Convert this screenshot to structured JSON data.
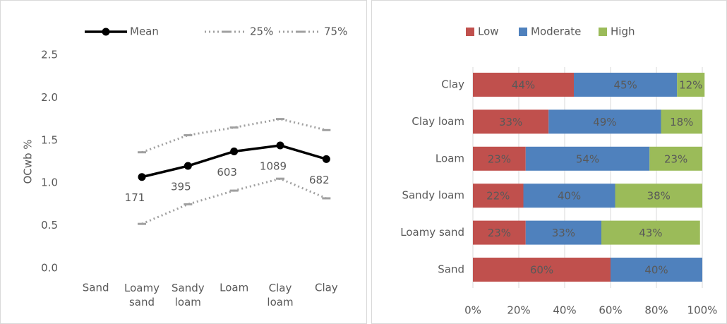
{
  "chart_data": [
    {
      "type": "line",
      "y_label": "OCwb %",
      "categories": [
        "Sand",
        "Loamy sand",
        "Sandy loam",
        "Loam",
        "Clay loam",
        "Clay"
      ],
      "series": [
        {
          "name": "Mean",
          "color": "#000000",
          "values": [
            null,
            1.07,
            1.2,
            1.37,
            1.44,
            1.28
          ]
        },
        {
          "name": "25%",
          "color": "#a0a0a0",
          "values": [
            null,
            0.52,
            0.75,
            0.91,
            1.05,
            0.82
          ]
        },
        {
          "name": "75%",
          "color": "#a0a0a0",
          "values": [
            null,
            1.36,
            1.56,
            1.65,
            1.75,
            1.62
          ]
        }
      ],
      "sample_counts": [
        null,
        171,
        395,
        603,
        1089,
        682
      ],
      "ylim": [
        0,
        2.5
      ],
      "yticks": [
        {
          "value": 0,
          "label": "0.0"
        },
        0.5,
        {
          "value": 1,
          "label": "1.0"
        },
        1.5,
        {
          "value": 2,
          "label": "2.0"
        },
        2.5
      ],
      "legend": "top",
      "grid": false
    },
    {
      "type": "stacked-bar-horizontal",
      "categories": [
        "Sand",
        "Loamy sand",
        "Sandy loam",
        "Loam",
        "Clay loam",
        "Clay"
      ],
      "series": [
        {
          "name": "Low",
          "color": "#c0504d",
          "values": [
            60,
            23,
            22,
            23,
            33,
            44
          ],
          "value_labels": [
            "60%",
            "23%",
            "22%",
            "23%",
            "33%",
            "44%"
          ]
        },
        {
          "name": "Moderate",
          "color": "#4f81bd",
          "values": [
            40,
            33,
            40,
            54,
            49,
            45
          ],
          "value_labels": [
            "40%",
            "33%",
            "40%",
            "54%",
            "49%",
            "45%"
          ]
        },
        {
          "name": "High",
          "color": "#9bbb59",
          "values": [
            null,
            43,
            38,
            23,
            18,
            12
          ],
          "value_labels": [
            null,
            "43%",
            "38%",
            "23%",
            "18%",
            "12%"
          ]
        }
      ],
      "xlim": [
        0,
        100
      ],
      "xticks": [
        {
          "value": 0,
          "label": "0%"
        },
        {
          "value": 20,
          "label": "20%"
        },
        {
          "value": 40,
          "label": "40%"
        },
        {
          "value": 60,
          "label": "60%"
        },
        {
          "value": 80,
          "label": "80%"
        },
        {
          "value": 100,
          "label": "100%"
        }
      ],
      "legend": "top",
      "grid": true
    }
  ]
}
